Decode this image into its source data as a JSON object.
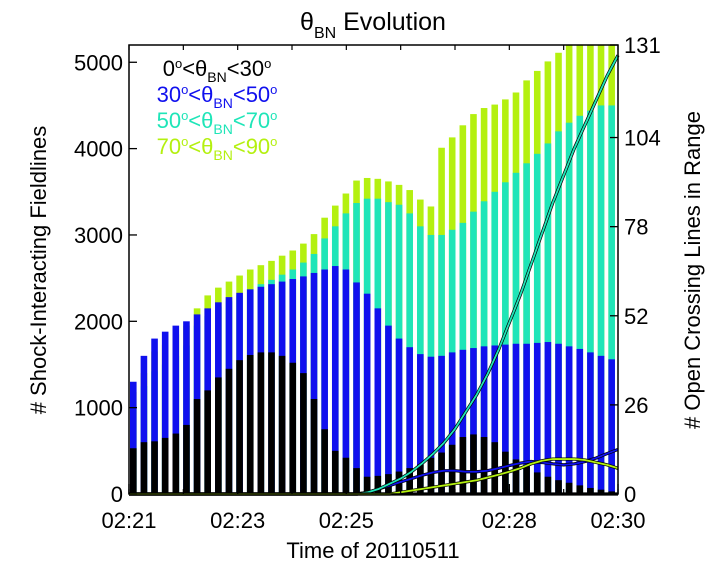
{
  "chart_data": {
    "type": "bar",
    "title_main": "θ",
    "title_sub": "BN",
    "title_rest": " Evolution",
    "xlabel": "Time of 20110511",
    "ylabel_left": "# Shock-Interacting Fieldlines",
    "ylabel_right": "# Open Crossing Lines in Range",
    "ylim_left": [
      0,
      5200
    ],
    "ylim_right": [
      0,
      131
    ],
    "yticks_left": [
      0,
      1000,
      2000,
      3000,
      4000,
      5000
    ],
    "yticks_right": [
      0,
      26,
      52,
      78,
      104,
      131
    ],
    "xlim_minutes": [
      0,
      9
    ],
    "xticks": [
      {
        "pos": 0,
        "label": "02:21"
      },
      {
        "pos": 2,
        "label": "02:23"
      },
      {
        "pos": 4,
        "label": "02:25"
      },
      {
        "pos": 7,
        "label": "02:28"
      },
      {
        "pos": 9,
        "label": "02:30"
      }
    ],
    "colors": {
      "0-30": "#000000",
      "30-50": "#1010ee",
      "50-70": "#1fe5b8",
      "70-90": "#b4f010"
    },
    "legend": [
      {
        "key": "0-30",
        "lo": "0",
        "hi": "30",
        "sub": "BN"
      },
      {
        "key": "30-50",
        "lo": "30",
        "hi": "50",
        "sub": "BN"
      },
      {
        "key": "50-70",
        "lo": "50",
        "hi": "70",
        "sub": "BN"
      },
      {
        "key": "70-90",
        "lo": "70",
        "hi": "90",
        "sub": "BN"
      }
    ],
    "stacked_bars": {
      "x_minutes": [
        0.0,
        0.1956,
        0.3913,
        0.587,
        0.7826,
        0.9783,
        1.1739,
        1.3696,
        1.5652,
        1.7609,
        1.9565,
        2.1522,
        2.3478,
        2.5435,
        2.7391,
        2.9348,
        3.1304,
        3.3261,
        3.5217,
        3.7174,
        3.913,
        4.1087,
        4.3043,
        4.5,
        4.6957,
        4.8913,
        5.087,
        5.2826,
        5.4783,
        5.6739,
        5.8696,
        6.0652,
        6.2609,
        6.4565,
        6.6522,
        6.8478,
        7.0435,
        7.2391,
        7.4348,
        7.6304,
        7.8261,
        8.0217,
        8.2174,
        8.413,
        8.6087,
        8.8043
      ],
      "series": [
        {
          "key": "0-30",
          "values": [
            530,
            600,
            610,
            650,
            700,
            800,
            1100,
            1200,
            1350,
            1450,
            1550,
            1610,
            1640,
            1640,
            1600,
            1520,
            1400,
            1100,
            750,
            500,
            420,
            300,
            200,
            210,
            230,
            260,
            300,
            340,
            420,
            480,
            570,
            660,
            690,
            660,
            600,
            490,
            400,
            320,
            250,
            200,
            160,
            130,
            100,
            70,
            50,
            30
          ]
        },
        {
          "key": "30-50",
          "values": [
            1300,
            1600,
            1800,
            1880,
            1950,
            2000,
            2080,
            2150,
            2220,
            2280,
            2330,
            2370,
            2400,
            2430,
            2460,
            2490,
            2520,
            2560,
            2600,
            2640,
            2600,
            2450,
            2320,
            2150,
            1950,
            1800,
            1700,
            1620,
            1590,
            1600,
            1640,
            1670,
            1690,
            1710,
            1720,
            1730,
            1740,
            1740,
            1750,
            1760,
            1740,
            1710,
            1680,
            1640,
            1600,
            1560
          ]
        },
        {
          "key": "50-70",
          "values": [
            1020,
            1250,
            1420,
            1500,
            1600,
            1720,
            1950,
            2060,
            2170,
            2230,
            2300,
            2370,
            2430,
            2480,
            2540,
            2600,
            2680,
            2780,
            2960,
            3100,
            3250,
            3370,
            3420,
            3420,
            3380,
            3350,
            3250,
            3100,
            3000,
            3000,
            3060,
            3140,
            3270,
            3390,
            3500,
            3610,
            3720,
            3830,
            3940,
            4060,
            4200,
            4300,
            4380,
            4440,
            4500,
            4500
          ]
        },
        {
          "key": "70-90",
          "values": [
            1180,
            1400,
            1650,
            1730,
            1850,
            1950,
            2150,
            2300,
            2390,
            2460,
            2530,
            2600,
            2650,
            2700,
            2760,
            2820,
            2900,
            3010,
            3200,
            3340,
            3480,
            3630,
            3660,
            3650,
            3620,
            3580,
            3520,
            3410,
            3330,
            4010,
            4130,
            4270,
            4400,
            4470,
            4510,
            4570,
            4650,
            4790,
            4900,
            5010,
            5110,
            5240,
            5350,
            5500,
            5570,
            5600
          ]
        }
      ]
    },
    "open_lines": {
      "x_minutes": [
        0,
        0.5,
        1,
        1.5,
        2,
        2.5,
        3,
        3.5,
        4,
        4.2,
        4.4,
        4.6,
        4.8,
        5.0,
        5.2,
        5.4,
        5.6,
        5.8,
        6.0,
        6.2,
        6.4,
        6.6,
        6.8,
        7.0,
        7.2,
        7.4,
        7.6,
        7.8,
        8.0,
        8.2,
        8.4,
        8.6,
        8.8,
        9.0
      ],
      "series": [
        {
          "key": "0-30",
          "values": [
            0,
            0,
            0,
            0,
            0,
            0,
            0,
            0,
            0,
            0,
            0,
            0,
            0,
            0,
            0,
            0,
            0,
            0,
            0,
            0,
            0,
            0,
            0,
            0,
            0,
            0,
            0,
            0,
            0,
            0,
            0,
            0,
            0,
            0
          ]
        },
        {
          "key": "30-50",
          "values": [
            0,
            0,
            0,
            0,
            0,
            0,
            0,
            0,
            0,
            0,
            0.5,
            1.5,
            2.5,
            3.5,
            4.5,
            5.5,
            6.3,
            6.8,
            6.8,
            6.5,
            6.5,
            6.8,
            7.5,
            8.3,
            9,
            9.5,
            9.2,
            8.8,
            8.5,
            8.8,
            9.5,
            10.5,
            11.8,
            13
          ]
        },
        {
          "key": "50-70",
          "values": [
            0,
            0,
            0,
            0,
            0,
            0,
            0,
            0,
            0,
            0,
            0.5,
            1.5,
            3,
            4.5,
            6.5,
            9,
            11.8,
            15,
            19,
            24,
            29,
            35,
            42,
            50,
            58,
            67,
            76,
            85,
            93,
            101,
            108,
            115,
            122,
            128
          ]
        },
        {
          "key": "70-90",
          "values": [
            0,
            0,
            0,
            0,
            0,
            0,
            0,
            0,
            0,
            0,
            0,
            0,
            0,
            0.5,
            1,
            1.5,
            2,
            2.5,
            3,
            3.5,
            4,
            4.8,
            5.6,
            6.5,
            7.5,
            8.8,
            9.7,
            10.2,
            10.2,
            10.2,
            9.9,
            9.2,
            8.5,
            7.5
          ]
        }
      ]
    }
  }
}
